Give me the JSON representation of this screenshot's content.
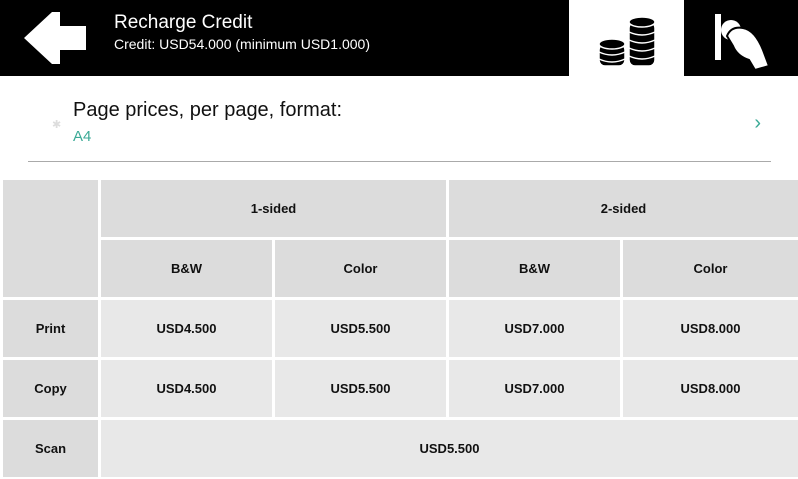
{
  "header": {
    "title": "Recharge Credit",
    "subtitle": "Credit: USD54.000 (minimum USD1.000)"
  },
  "format": {
    "label": "Page prices, per page, format:",
    "value": "A4"
  },
  "table": {
    "group_headers": [
      "1-sided",
      "2-sided"
    ],
    "sub_headers": [
      "B&W",
      "Color",
      "B&W",
      "Color"
    ],
    "rows": [
      {
        "label": "Print",
        "values": [
          "USD4.500",
          "USD5.500",
          "USD7.000",
          "USD8.000"
        ]
      },
      {
        "label": "Copy",
        "values": [
          "USD4.500",
          "USD5.500",
          "USD7.000",
          "USD8.000"
        ]
      }
    ],
    "scan": {
      "label": "Scan",
      "value": "USD5.500"
    }
  },
  "colors": {
    "accent": "#3aaa96",
    "header_bg": "#000000",
    "cell_header": "#dcdcdc",
    "cell": "#e8e8e8"
  }
}
